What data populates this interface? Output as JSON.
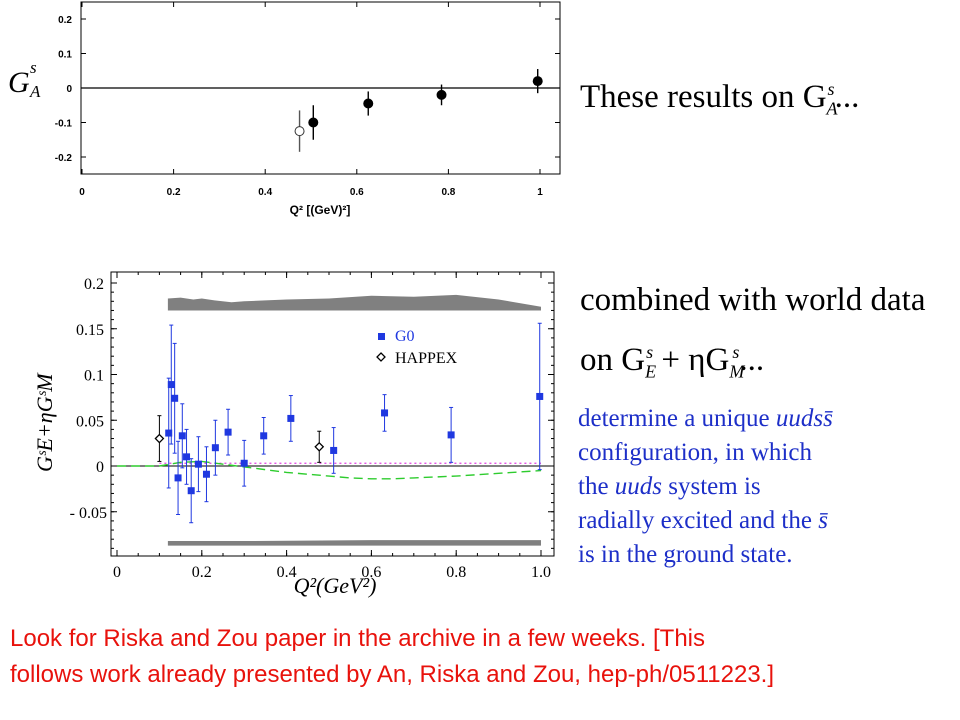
{
  "top_text": "These results on G",
  "top_text_sub": "A",
  "top_text_sup": "s",
  "top_text_tail": "...",
  "mid_text_1": "combined with world data",
  "mid_text_2_prefix": "on G",
  "mid_text_2_sub1": "E",
  "mid_text_2_sup1": "s",
  "mid_text_2_plus": " + ηG",
  "mid_text_2_sub2": "M",
  "mid_text_2_sup2": "s",
  "mid_text_2_tail": "...",
  "blue_lines": [
    [
      "determine a unique ",
      "uudss̄",
      ""
    ],
    [
      "configuration, in which",
      "",
      ""
    ],
    [
      "the ",
      "uuds",
      " system is"
    ],
    [
      "radially excited and the ",
      "s̄",
      ""
    ],
    [
      "is in the ground state.",
      "",
      ""
    ]
  ],
  "red_line_1": "Look for Riska and Zou paper in the archive in a few weeks. [This",
  "red_line_2": "follows work already presented by An, Riska and Zou, hep-ph/0511223.]",
  "colors": {
    "blue_text": "#1d2fc8",
    "red_text": "#e8120c",
    "g0_series": "#1f38e0",
    "band": "#808080",
    "dashed_green": "#2ecc2e",
    "dotted_magenta": "#e040e0"
  },
  "chart_data": [
    {
      "type": "scatter",
      "ylabel_main": "G",
      "ylabel_sub": "A",
      "ylabel_sup": "s",
      "xlabel": "Q² [(GeV)²]",
      "xlim": [
        0,
        1.05
      ],
      "ylim": [
        -0.23,
        0.235
      ],
      "xticks": [
        0,
        0.2,
        0.4,
        0.6,
        0.8,
        1
      ],
      "xtick_labels": [
        "0",
        "0.2",
        "0.4",
        "0.6",
        "0.8",
        "1"
      ],
      "yticks": [
        0.2,
        0.1,
        0,
        -0.1,
        -0.2
      ],
      "ytick_labels": [
        "0.2",
        "0.1",
        "0",
        "-0.1",
        "-0.2"
      ],
      "series": [
        {
          "style": "open-circle",
          "points": [
            {
              "x": 0.475,
              "y": -0.125,
              "err": 0.06
            }
          ]
        },
        {
          "style": "filled-circle",
          "points": [
            {
              "x": 0.505,
              "y": -0.1,
              "err": 0.05
            },
            {
              "x": 0.625,
              "y": -0.045,
              "err": 0.035
            },
            {
              "x": 0.785,
              "y": -0.02,
              "err": 0.03
            },
            {
              "x": 0.995,
              "y": 0.02,
              "err": 0.035
            }
          ]
        }
      ]
    },
    {
      "type": "scatter",
      "ylabel": "GˢE+ηGˢM",
      "xlabel": "Q²(GeV²)",
      "xlim": [
        0,
        1.02
      ],
      "ylim": [
        -0.1,
        0.2
      ],
      "xticks": [
        0,
        0.2,
        0.4,
        0.6,
        0.8,
        1.0
      ],
      "xtick_labels": [
        "0",
        "0.2",
        "0.4",
        "0.6",
        "0.8",
        "1.0"
      ],
      "yticks": [
        0.2,
        0.15,
        0.1,
        0.05,
        0,
        -0.05
      ],
      "ytick_labels": [
        "0.2",
        "0.15",
        "0.1",
        "0.05",
        "0",
        "- 0.05"
      ],
      "legend": [
        {
          "name": "G0",
          "marker": "blue-square"
        },
        {
          "name": "HAPPEX",
          "marker": "open-diamond"
        }
      ],
      "legend_position": "top-right",
      "series": [
        {
          "name": "G0",
          "style": "blue-square",
          "points": [
            {
              "x": 0.122,
              "y": 0.036,
              "err": 0.06
            },
            {
              "x": 0.128,
              "y": 0.089,
              "err": 0.065
            },
            {
              "x": 0.136,
              "y": 0.074,
              "err": 0.06
            },
            {
              "x": 0.144,
              "y": -0.013,
              "err": 0.04
            },
            {
              "x": 0.154,
              "y": 0.033,
              "err": 0.035
            },
            {
              "x": 0.164,
              "y": 0.01,
              "err": 0.03
            },
            {
              "x": 0.175,
              "y": -0.027,
              "err": 0.035
            },
            {
              "x": 0.192,
              "y": 0.002,
              "err": 0.03
            },
            {
              "x": 0.211,
              "y": -0.009,
              "err": 0.03
            },
            {
              "x": 0.232,
              "y": 0.02,
              "err": 0.03
            },
            {
              "x": 0.262,
              "y": 0.037,
              "err": 0.025
            },
            {
              "x": 0.3,
              "y": 0.003,
              "err": 0.025
            },
            {
              "x": 0.346,
              "y": 0.033,
              "err": 0.02
            },
            {
              "x": 0.41,
              "y": 0.052,
              "err": 0.025
            },
            {
              "x": 0.511,
              "y": 0.017,
              "err": 0.025
            },
            {
              "x": 0.631,
              "y": 0.058,
              "err": 0.02
            },
            {
              "x": 0.788,
              "y": 0.034,
              "err": 0.03
            },
            {
              "x": 0.997,
              "y": 0.076,
              "err": 0.08
            }
          ]
        },
        {
          "name": "HAPPEX",
          "style": "open-diamond",
          "points": [
            {
              "x": 0.1,
              "y": 0.03,
              "err": 0.025
            },
            {
              "x": 0.477,
              "y": 0.021,
              "err": 0.017
            }
          ]
        }
      ],
      "band_top": {
        "x": [
          0.12,
          0.15,
          0.18,
          0.2,
          0.23,
          0.27,
          0.3,
          0.35,
          0.4,
          0.5,
          0.6,
          0.7,
          0.8,
          0.9,
          1.0
        ],
        "upper": [
          0.183,
          0.184,
          0.182,
          0.183,
          0.181,
          0.179,
          0.18,
          0.181,
          0.182,
          0.183,
          0.186,
          0.185,
          0.187,
          0.182,
          0.174
        ],
        "lower": [
          0.17,
          0.17,
          0.17,
          0.17,
          0.17,
          0.17,
          0.17,
          0.17,
          0.17,
          0.17,
          0.17,
          0.17,
          0.17,
          0.17,
          0.17
        ]
      },
      "band_bottom": {
        "x": [
          0.12,
          0.3,
          0.6,
          0.8,
          1.0
        ],
        "upper": [
          -0.082,
          -0.082,
          -0.081,
          -0.081,
          -0.081
        ],
        "lower": [
          -0.087,
          -0.087,
          -0.087,
          -0.087,
          -0.087
        ]
      },
      "curve_dashed_green": {
        "x": [
          0.0,
          0.1,
          0.15,
          0.2,
          0.25,
          0.3,
          0.35,
          0.4,
          0.45,
          0.5,
          0.55,
          0.6,
          0.65,
          0.7,
          0.8,
          0.9,
          1.0
        ],
        "y": [
          0.0,
          0.0,
          0.004,
          0.005,
          0.002,
          -0.001,
          -0.004,
          -0.007,
          -0.009,
          -0.011,
          -0.013,
          -0.014,
          -0.014,
          -0.013,
          -0.011,
          -0.008,
          -0.005
        ]
      },
      "curve_dotted_magenta": {
        "x": [
          0.1,
          1.0
        ],
        "y": [
          0.003,
          0.003
        ]
      }
    }
  ]
}
